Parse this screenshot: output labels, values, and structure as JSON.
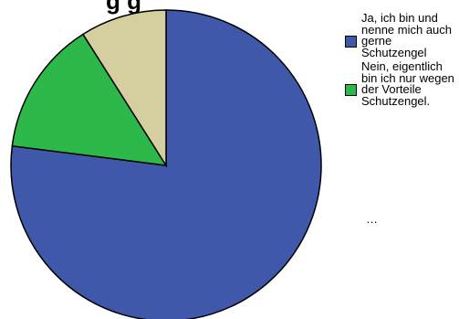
{
  "chart_data": {
    "type": "pie",
    "title": "",
    "slices": [
      {
        "label": "Ja, ich bin und nenne mich auch gerne Schutzengel",
        "value": 77,
        "color": "#3f58a9"
      },
      {
        "label": "Nein, eigentlich bin ich nur wegen der Vorteile Schutzengel.",
        "value": 14,
        "color": "#2db84a"
      },
      {
        "label": "…",
        "value": 9,
        "color": "#d5cfa0"
      }
    ],
    "legend_position": "right"
  },
  "title_fragment": "g  g",
  "legend_more": "…"
}
